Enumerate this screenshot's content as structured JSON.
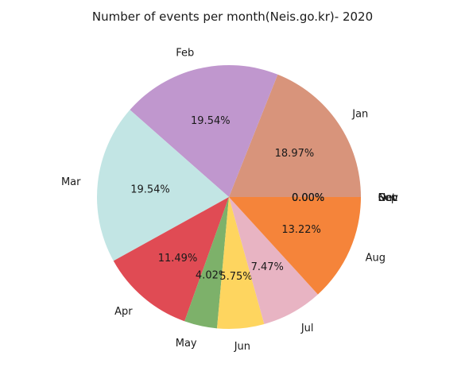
{
  "chart_data": {
    "type": "pie",
    "title": "Number of events per month(Neis.go.kr)- 2020",
    "labels": [
      "Jan",
      "Feb",
      "Mar",
      "Apr",
      "May",
      "Jun",
      "Jul",
      "Aug",
      "Sep",
      "Oct",
      "Nov",
      "Dec"
    ],
    "values": [
      18.97,
      19.54,
      19.54,
      11.49,
      4.02,
      5.75,
      7.47,
      13.22,
      0.0,
      0.0,
      0.0,
      0.0
    ],
    "pct_labels": [
      "18.97%",
      "19.54%",
      "19.54%",
      "11.49%",
      "4.02%",
      "5.75%",
      "7.47%",
      "13.22%",
      "0.00%",
      "0.00%",
      "0.00%",
      "0.00%"
    ],
    "colors": [
      "#d8947b",
      "#c097ce",
      "#c2e5e4",
      "#e04b54",
      "#7db16a",
      "#fed55f",
      "#e8b4c3",
      "#f5843a",
      "#b0b0b0",
      "#b0b0b0",
      "#b0b0b0",
      "#b0b0b0"
    ],
    "start_angle_deg": 0,
    "direction": "counterclockwise"
  }
}
